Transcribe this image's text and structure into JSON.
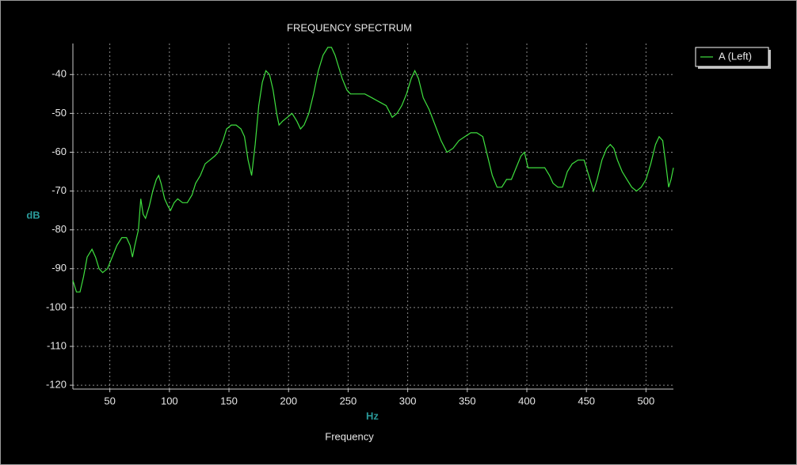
{
  "chart_data": {
    "type": "line",
    "title": "FREQUENCY SPECTRUM",
    "x_label": "Hz",
    "x_sublabel": "Frequency",
    "y_label": "dB",
    "xlim": [
      19,
      523
    ],
    "ylim": [
      -121,
      -32
    ],
    "xticks": [
      50,
      100,
      150,
      200,
      250,
      300,
      350,
      400,
      450,
      500
    ],
    "yticks": [
      -120,
      -110,
      -100,
      -90,
      -80,
      -70,
      -60,
      -50,
      -40
    ],
    "grid": true,
    "legend": "top-right",
    "x": [
      19,
      22,
      25,
      28,
      31,
      35,
      38,
      41,
      44,
      48,
      52,
      56,
      60,
      64,
      67,
      69,
      71,
      74,
      76,
      78,
      80,
      83,
      86,
      89,
      91,
      93,
      96,
      99,
      101,
      104,
      107,
      111,
      115,
      119,
      122,
      126,
      130,
      134,
      138,
      141,
      145,
      148,
      152,
      156,
      160,
      163,
      166,
      169,
      172,
      175,
      178,
      181,
      184,
      187,
      190,
      192,
      195,
      199,
      203,
      207,
      210,
      213,
      217,
      221,
      225,
      229,
      233,
      236,
      239,
      242,
      245,
      249,
      252,
      258,
      264,
      270,
      276,
      282,
      287,
      291,
      295,
      299,
      303,
      306,
      309,
      313,
      318,
      323,
      328,
      333,
      338,
      343,
      348,
      353,
      358,
      363,
      367,
      371,
      375,
      379,
      383,
      387,
      391,
      395,
      398,
      401,
      405,
      410,
      415,
      419,
      422,
      426,
      430,
      434,
      438,
      443,
      448,
      452,
      456,
      459,
      463,
      467,
      470,
      473,
      476,
      480,
      484,
      488,
      492,
      496,
      500,
      504,
      508,
      511,
      514,
      517,
      519,
      521,
      523
    ],
    "series": [
      {
        "name": "A (Left)",
        "color": "#3fe03f",
        "values": [
          -93,
          -96,
          -96,
          -92,
          -87,
          -85,
          -87,
          -90,
          -91,
          -90,
          -87,
          -84,
          -82,
          -82,
          -84,
          -87,
          -84,
          -80,
          -72,
          -76,
          -77,
          -74,
          -70,
          -67,
          -66,
          -68,
          -72,
          -74,
          -75,
          -73,
          -72,
          -73,
          -73,
          -71,
          -68,
          -66,
          -63,
          -62,
          -61,
          -60,
          -57,
          -54,
          -53,
          -53,
          -54,
          -56,
          -62,
          -66,
          -58,
          -48,
          -42,
          -39,
          -40,
          -44,
          -50,
          -53,
          -52,
          -51,
          -50,
          -52,
          -54,
          -53,
          -50,
          -45,
          -39,
          -35,
          -33,
          -33,
          -35,
          -38,
          -41,
          -44,
          -45,
          -45,
          -45,
          -46,
          -47,
          -48,
          -51,
          -50,
          -48,
          -45,
          -41,
          -39,
          -41,
          -46,
          -49,
          -53,
          -57,
          -60,
          -59,
          -57,
          -56,
          -55,
          -55,
          -56,
          -61,
          -66,
          -69,
          -69,
          -67,
          -67,
          -64,
          -61,
          -60,
          -64,
          -64,
          -64,
          -64,
          -66,
          -68,
          -69,
          -69,
          -65,
          -63,
          -62,
          -62,
          -66,
          -70,
          -67,
          -62,
          -59,
          -58,
          -59,
          -62,
          -65,
          -67,
          -69,
          -70,
          -69,
          -67,
          -63,
          -58,
          -56,
          -57,
          -64,
          -69,
          -67,
          -64
        ]
      }
    ]
  }
}
